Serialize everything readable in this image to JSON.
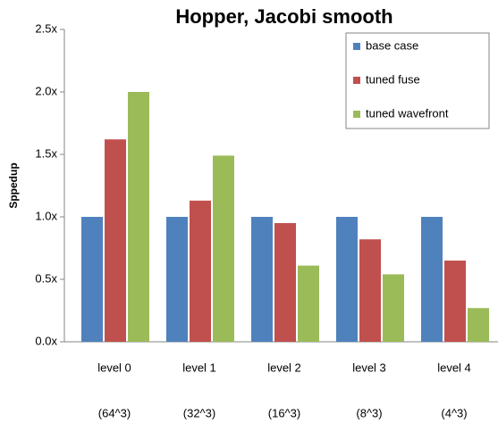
{
  "chart_data": {
    "type": "bar",
    "title": "Hopper, Jacobi smooth",
    "y_label": "Sppedup",
    "categories": [
      "level 0",
      "level 1",
      "level 2",
      "level 3",
      "level 4"
    ],
    "category_sizes": [
      "(64^3)",
      "(32^3)",
      "(16^3)",
      "(8^3)",
      "(4^3)"
    ],
    "series": [
      {
        "name": "base case",
        "color": "#4f81bd",
        "values": [
          1.0,
          1.0,
          1.0,
          1.0,
          1.0
        ]
      },
      {
        "name": "tuned fuse",
        "color": "#c0504d",
        "values": [
          1.62,
          1.13,
          0.95,
          0.82,
          0.65
        ]
      },
      {
        "name": "tuned wavefront",
        "color": "#9bbb59",
        "values": [
          2.0,
          1.49,
          0.61,
          0.54,
          0.27
        ]
      }
    ],
    "ylim": [
      0,
      2.5
    ],
    "yticks": [
      {
        "value": 0,
        "label": "0.0x"
      },
      {
        "value": 0.5,
        "label": "0.5x"
      },
      {
        "value": 1.0,
        "label": "1.0x"
      },
      {
        "value": 1.5,
        "label": "1.5x"
      },
      {
        "value": 2.0,
        "label": "2.0x"
      },
      {
        "value": 2.5,
        "label": "2.5x"
      }
    ],
    "grid": false,
    "legend": "upper right"
  }
}
